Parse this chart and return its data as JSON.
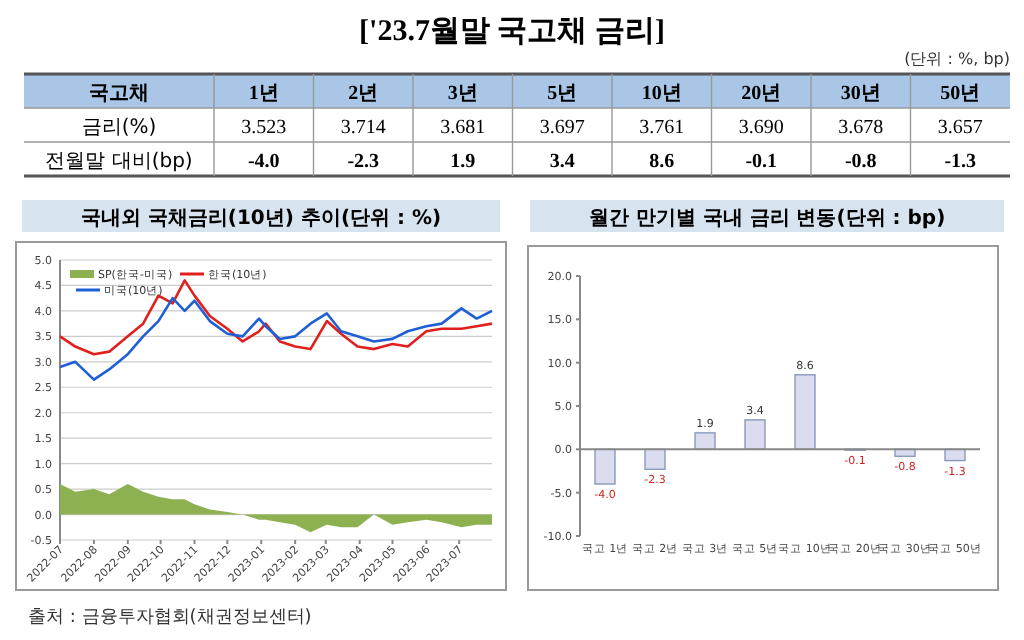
{
  "chart_data": [
    {
      "type": "other",
      "title": "['23.7월말 국고채 금리]",
      "ylabel": "국고채",
      "categories": [
        "1년",
        "2년",
        "3년",
        "5년",
        "10년",
        "20년",
        "30년",
        "50년"
      ],
      "series": [
        {
          "name": "금리(%)",
          "values": [
            3.523,
            3.714,
            3.681,
            3.697,
            3.761,
            3.69,
            3.678,
            3.657
          ],
          "value_labels": [
            "3.523",
            "3.714",
            "3.681",
            "3.697",
            "3.761",
            "3.690",
            "3.678",
            "3.657"
          ]
        },
        {
          "name": "전월말 대비(bp)",
          "values": [
            -4.0,
            -2.3,
            1.9,
            3.4,
            8.6,
            -0.1,
            -0.8,
            -1.3
          ],
          "value_labels": [
            "-4.0",
            "-2.3",
            "1.9",
            "3.4",
            "8.6",
            "-0.1",
            "-0.8",
            "-1.3"
          ]
        }
      ],
      "annotations": [
        "(단위 : %, bp)",
        "출처 : 금융투자협회(채권정보센터)"
      ]
    },
    {
      "type": "line",
      "title": "국내외 국채금리(10년) 추이(단위 : %)",
      "x": [
        "2022-07-01",
        "2022-07-15",
        "2022-08-01",
        "2022-08-15",
        "2022-09-01",
        "2022-09-15",
        "2022-09-29",
        "2022-10-12",
        "2022-10-23",
        "2022-11-01",
        "2022-11-15",
        "2022-12-01",
        "2022-12-15",
        "2022-12-30",
        "2023-01-05",
        "2023-01-18",
        "2023-02-01",
        "2023-02-15",
        "2023-03-02",
        "2023-03-15",
        "2023-03-30",
        "2023-04-14",
        "2023-05-01",
        "2023-05-15",
        "2023-06-01",
        "2023-06-15",
        "2023-07-03",
        "2023-07-17",
        "2023-07-31"
      ],
      "series": [
        {
          "name": "SP(한국-미국)",
          "type": "area",
          "color": "#8db050",
          "values": [
            0.6,
            0.45,
            0.5,
            0.4,
            0.6,
            0.45,
            0.35,
            0.3,
            0.3,
            0.2,
            0.1,
            0.05,
            0.0,
            -0.1,
            -0.1,
            -0.15,
            -0.2,
            -0.35,
            -0.2,
            -0.25,
            -0.25,
            0.0,
            -0.2,
            -0.15,
            -0.1,
            -0.15,
            -0.25,
            -0.2,
            -0.2
          ]
        },
        {
          "name": "한국(10년)",
          "color": "#e0201c",
          "values": [
            3.5,
            3.3,
            3.15,
            3.2,
            3.5,
            3.75,
            4.3,
            4.15,
            4.6,
            4.3,
            3.9,
            3.65,
            3.4,
            3.6,
            3.75,
            3.4,
            3.3,
            3.25,
            3.8,
            3.55,
            3.3,
            3.25,
            3.35,
            3.3,
            3.6,
            3.65,
            3.65,
            3.7,
            3.75
          ]
        },
        {
          "name": "미국(10년)",
          "color": "#1f5fd6",
          "values": [
            2.9,
            3.0,
            2.65,
            2.85,
            3.15,
            3.5,
            3.8,
            4.25,
            4.0,
            4.2,
            3.8,
            3.55,
            3.5,
            3.85,
            3.7,
            3.45,
            3.5,
            3.75,
            3.95,
            3.6,
            3.5,
            3.4,
            3.45,
            3.6,
            3.7,
            3.75,
            4.05,
            3.85,
            4.0
          ]
        }
      ],
      "xlim": [
        "2022-07-01",
        "2023-07-31"
      ],
      "xticks": [
        "2022-07",
        "2022-08",
        "2022-09",
        "2022-10",
        "2022-11",
        "2022-12",
        "2023-01",
        "2023-02",
        "2023-03",
        "2023-04",
        "2023-05",
        "2023-06",
        "2023-07"
      ],
      "ylim": [
        -0.5,
        5
      ],
      "yticks": [
        {
          "value": -0.5,
          "label": "-0.5"
        },
        {
          "value": 0,
          "label": "0.0"
        },
        {
          "value": 0.5,
          "label": "0.5"
        },
        {
          "value": 1,
          "label": "1.0"
        },
        {
          "value": 1.5,
          "label": "1.5"
        },
        {
          "value": 2,
          "label": "2.0"
        },
        {
          "value": 2.5,
          "label": "2.5"
        },
        {
          "value": 3,
          "label": "3.0"
        },
        {
          "value": 3.5,
          "label": "3.5"
        },
        {
          "value": 4,
          "label": "4.0"
        },
        {
          "value": 4.5,
          "label": "4.5"
        },
        {
          "value": 5,
          "label": "5.0"
        }
      ],
      "grid": "y",
      "legend": "top left"
    },
    {
      "type": "bar",
      "title": "월간 만기별 국내 금리 변동(단위 : bp)",
      "categories": [
        "국고 1년",
        "국고 2년",
        "국고 3년",
        "국고 5년",
        "국고 10년",
        "국고 20년",
        "국고 30년",
        "국고 50년"
      ],
      "values": [
        -4.0,
        -2.3,
        1.9,
        3.4,
        8.6,
        -0.1,
        -0.8,
        -1.3
      ],
      "value_labels": [
        "-4.0",
        "-2.3",
        "1.9",
        "3.4",
        "8.6",
        "-0.1",
        "-0.8",
        "-1.3"
      ],
      "color": "#dcdcf0",
      "ylim": [
        -10,
        20
      ],
      "yticks": [
        {
          "value": -10,
          "label": "-10.0"
        },
        {
          "value": -5,
          "label": "-5.0"
        },
        {
          "value": 0,
          "label": "0.0"
        },
        {
          "value": 5,
          "label": "5.0"
        },
        {
          "value": 10,
          "label": "10.0"
        },
        {
          "value": 15,
          "label": "15.0"
        },
        {
          "value": 20,
          "label": "20.0"
        }
      ]
    }
  ]
}
